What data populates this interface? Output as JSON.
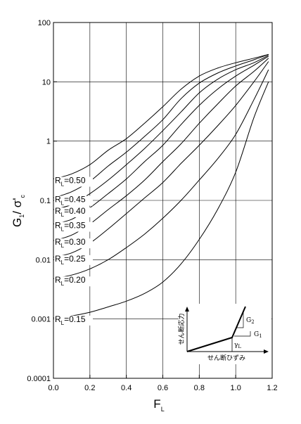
{
  "chart_data": {
    "type": "line",
    "xlabel": "F",
    "xlabel_sub": "L",
    "ylabel": "G",
    "ylabel_sub1": "1",
    "ylabel_mid": "/ σ'",
    "ylabel_sub2": "c",
    "xlim": [
      0.0,
      1.2
    ],
    "ylim": [
      0.0001,
      100
    ],
    "yscale": "log",
    "grid": true,
    "xticks": [
      "0.0",
      "0.2",
      "0.4",
      "0.6",
      "0.8",
      "1.0",
      "1.2"
    ],
    "yticks": [
      "0.0001",
      "0.001",
      "0.01",
      "0.1",
      "1",
      "10",
      "100"
    ],
    "series": [
      {
        "name": "=0.50",
        "x": [
          0,
          0.1,
          0.2,
          0.3,
          0.4,
          0.5,
          0.6,
          0.7,
          0.8,
          0.9,
          1.0,
          1.1,
          1.18
        ],
        "y": [
          0.23,
          0.28,
          0.4,
          0.7,
          1.1,
          2.0,
          3.8,
          7.5,
          12.5,
          17.0,
          21.0,
          25.0,
          29.0
        ]
      },
      {
        "name": "=0.45",
        "x": [
          0,
          0.1,
          0.2,
          0.3,
          0.4,
          0.5,
          0.6,
          0.7,
          0.8,
          0.9,
          1.0,
          1.1,
          1.18
        ],
        "y": [
          0.11,
          0.14,
          0.21,
          0.38,
          0.65,
          1.2,
          2.3,
          5.2,
          9.5,
          14.0,
          18.5,
          23.5,
          29.0
        ]
      },
      {
        "name": "=0.40",
        "x": [
          0,
          0.1,
          0.2,
          0.3,
          0.4,
          0.5,
          0.6,
          0.7,
          0.8,
          0.9,
          1.0,
          1.1,
          1.18
        ],
        "y": [
          0.07,
          0.085,
          0.13,
          0.22,
          0.4,
          0.75,
          1.5,
          3.1,
          6.5,
          11.0,
          16.0,
          21.0,
          28.0
        ]
      },
      {
        "name": "=0.35",
        "x": [
          0,
          0.1,
          0.2,
          0.3,
          0.4,
          0.5,
          0.6,
          0.7,
          0.8,
          0.9,
          1.0,
          1.1,
          1.18
        ],
        "y": [
          0.04,
          0.048,
          0.075,
          0.13,
          0.23,
          0.45,
          0.85,
          1.9,
          4.0,
          7.5,
          12.5,
          19.0,
          27.0
        ]
      },
      {
        "name": "=0.30",
        "x": [
          0,
          0.1,
          0.2,
          0.3,
          0.4,
          0.5,
          0.6,
          0.7,
          0.8,
          0.9,
          1.0,
          1.1,
          1.18
        ],
        "y": [
          0.021,
          0.026,
          0.04,
          0.07,
          0.12,
          0.22,
          0.45,
          0.9,
          2.0,
          4.2,
          8.5,
          15.0,
          25.0
        ]
      },
      {
        "name": "=0.25",
        "x": [
          0,
          0.1,
          0.2,
          0.3,
          0.4,
          0.5,
          0.6,
          0.7,
          0.8,
          0.9,
          1.0,
          1.1,
          1.18
        ],
        "y": [
          0.011,
          0.013,
          0.019,
          0.033,
          0.06,
          0.11,
          0.2,
          0.42,
          0.85,
          1.8,
          4.0,
          10.0,
          22.0
        ]
      },
      {
        "name": "=0.20",
        "x": [
          0,
          0.1,
          0.2,
          0.3,
          0.4,
          0.5,
          0.6,
          0.7,
          0.8,
          0.9,
          1.0,
          1.1,
          1.18
        ],
        "y": [
          0.0048,
          0.0055,
          0.007,
          0.01,
          0.016,
          0.027,
          0.05,
          0.1,
          0.22,
          0.5,
          1.3,
          5.0,
          16.0
        ]
      },
      {
        "name": "=0.15",
        "x": [
          0,
          0.1,
          0.2,
          0.3,
          0.4,
          0.5,
          0.6,
          0.7,
          0.8,
          0.9,
          1.0,
          1.1,
          1.18
        ],
        "y": [
          0.00105,
          0.00113,
          0.0013,
          0.0016,
          0.002,
          0.0027,
          0.0042,
          0.0085,
          0.022,
          0.07,
          0.3,
          2.5,
          10.0
        ]
      }
    ],
    "series_label_prefix": "R",
    "series_label_sub": "L"
  },
  "inset": {
    "ylabel": "せん断応力",
    "xlabel": "せん断ひずみ",
    "g2": "G",
    "g2_sub": "2",
    "g1": "G",
    "g1_sub": "1",
    "gamma": "γ",
    "gamma_sub": "L"
  }
}
